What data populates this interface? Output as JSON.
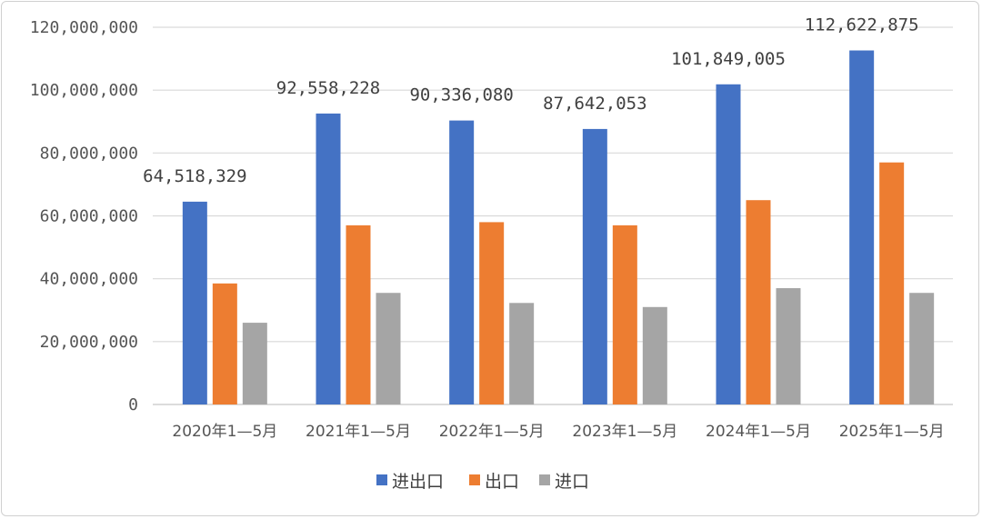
{
  "chart_data": {
    "type": "bar",
    "categories": [
      "2020年1—5月",
      "2021年1—5月",
      "2022年1—5月",
      "2023年1—5月",
      "2024年1—5月",
      "2025年1—5月"
    ],
    "series": [
      {
        "name": "进出口",
        "color": "#4472C4",
        "values": [
          64518329,
          92558228,
          90336080,
          87642053,
          101849005,
          112622875
        ]
      },
      {
        "name": "出口",
        "color": "#ED7D31",
        "values": [
          38500000,
          57000000,
          58000000,
          57000000,
          65000000,
          77000000
        ]
      },
      {
        "name": "进口",
        "color": "#A5A5A5",
        "values": [
          26000000,
          35500000,
          32300000,
          31000000,
          37000000,
          35500000
        ]
      }
    ],
    "data_labels": [
      "64,518,329",
      "92,558,228",
      "90,336,080",
      "87,642,053",
      "101,849,005",
      "112,622,875"
    ],
    "y_ticks": [
      "0",
      "20,000,000",
      "40,000,000",
      "60,000,000",
      "80,000,000",
      "100,000,000",
      "120,000,000"
    ],
    "ylim": [
      0,
      120000000
    ],
    "grid": true,
    "legend_position": "bottom-center",
    "title": "",
    "xlabel": "",
    "ylabel": ""
  }
}
